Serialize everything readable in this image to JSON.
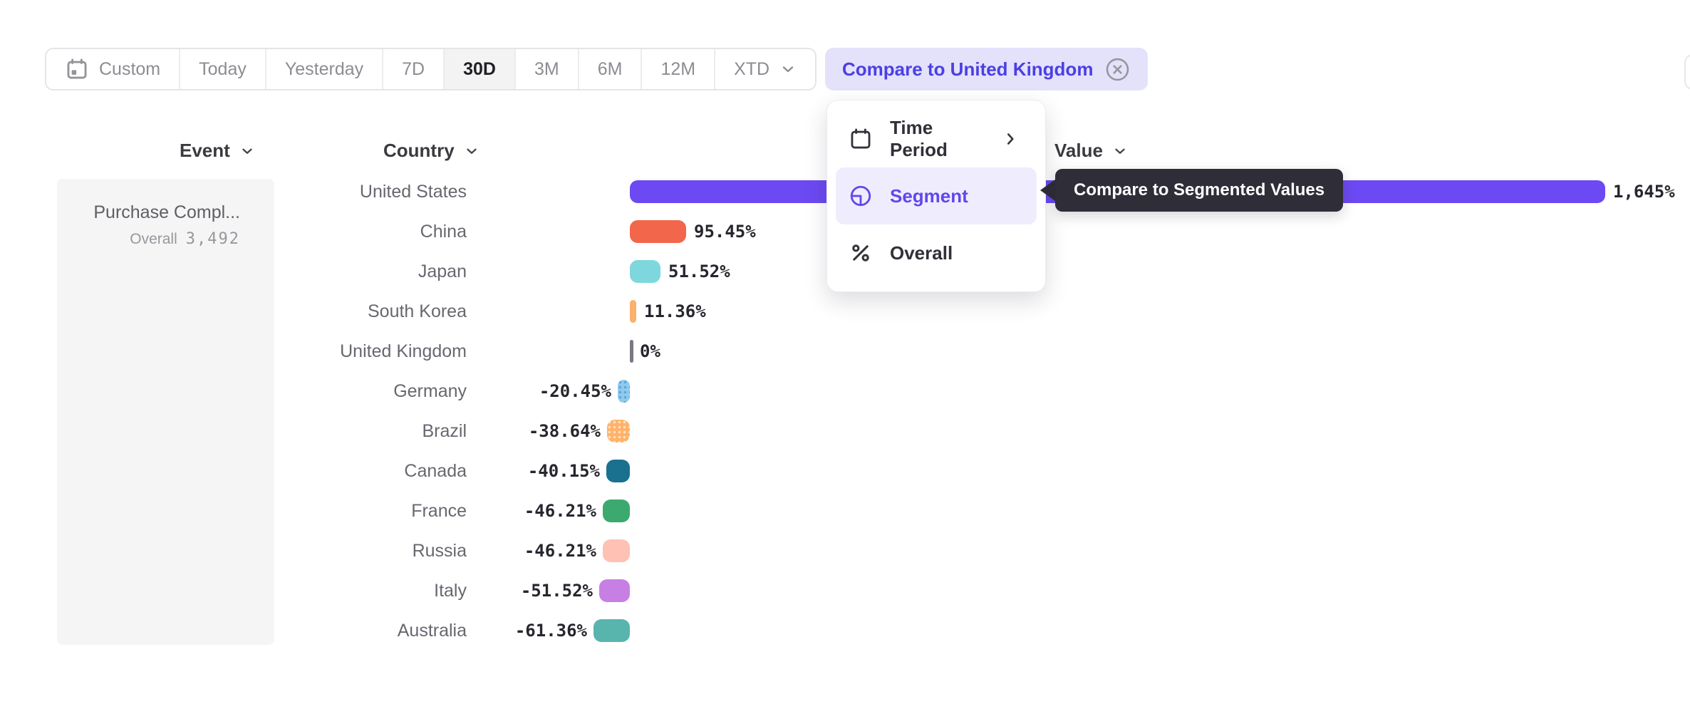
{
  "toolbar": {
    "date_ranges": [
      {
        "label": "Custom",
        "icon": "calendar-icon",
        "selected": false
      },
      {
        "label": "Today",
        "selected": false
      },
      {
        "label": "Yesterday",
        "selected": false
      },
      {
        "label": "7D",
        "selected": false
      },
      {
        "label": "30D",
        "selected": true
      },
      {
        "label": "3M",
        "selected": false
      },
      {
        "label": "6M",
        "selected": false
      },
      {
        "label": "12M",
        "selected": false
      },
      {
        "label": "XTD",
        "chevron": true,
        "selected": false
      }
    ],
    "compare_chip": {
      "label": "Compare to United Kingdom",
      "icon": "circle-x-icon"
    }
  },
  "columns": {
    "event": "Event",
    "country": "Country",
    "value": "Value"
  },
  "event_panel": {
    "event_name": "Purchase Compl...",
    "overall_label": "Overall",
    "overall_value": "3,492"
  },
  "context_menu": {
    "items": [
      {
        "label": "Time Period",
        "icon": "calendar-icon",
        "has_submenu": true,
        "selected": false
      },
      {
        "label": "Segment",
        "icon": "segment-icon",
        "has_submenu": false,
        "selected": true
      },
      {
        "label": "Overall",
        "icon": "percent-icon",
        "has_submenu": false,
        "selected": false
      }
    ]
  },
  "tooltip": {
    "text": "Compare to Segmented Values"
  },
  "chart_data": {
    "type": "bar",
    "orientation": "horizontal",
    "title": "",
    "xlabel": "Value",
    "ylabel": "Country",
    "unit": "%",
    "baseline_category": "United Kingdom",
    "categories": [
      "United States",
      "China",
      "Japan",
      "South Korea",
      "United Kingdom",
      "Germany",
      "Brazil",
      "Canada",
      "France",
      "Russia",
      "Italy",
      "Australia"
    ],
    "values": [
      1645,
      95.45,
      51.52,
      11.36,
      0,
      -20.45,
      -38.64,
      -40.15,
      -46.21,
      -46.21,
      -51.52,
      -61.36
    ],
    "value_labels": [
      "1,645%",
      "95.45%",
      "51.52%",
      "11.36%",
      "0%",
      "-20.45%",
      "-38.64%",
      "-40.15%",
      "-46.21%",
      "-46.21%",
      "-51.52%",
      "-61.36%"
    ],
    "bar_colors": [
      "#6C49F2",
      "#F2664B",
      "#7ED7DD",
      "#F9B16C",
      "#7B7880",
      "#8FCBEE",
      "#FFB268",
      "#19708F",
      "#3CA96F",
      "#FEC1B3",
      "#C77FE4",
      "#58B5AE"
    ],
    "bar_patterns": [
      null,
      null,
      null,
      null,
      null,
      "dots-dark",
      "dots-light",
      null,
      null,
      null,
      null,
      null
    ],
    "xlim": [
      -1645,
      1645
    ],
    "grid": false,
    "legend": false
  },
  "colors": {
    "accent_purple": "#6C49F2",
    "chip_bg": "#E4E1FB",
    "chip_text": "#4B3FE4",
    "menu_highlight_bg": "#EFEDFD",
    "menu_highlight_text": "#6247EB",
    "tooltip_bg": "#2E2D38",
    "panel_bg": "#F5F5F6",
    "toolbar_selected_bg": "#F3F3F4"
  }
}
